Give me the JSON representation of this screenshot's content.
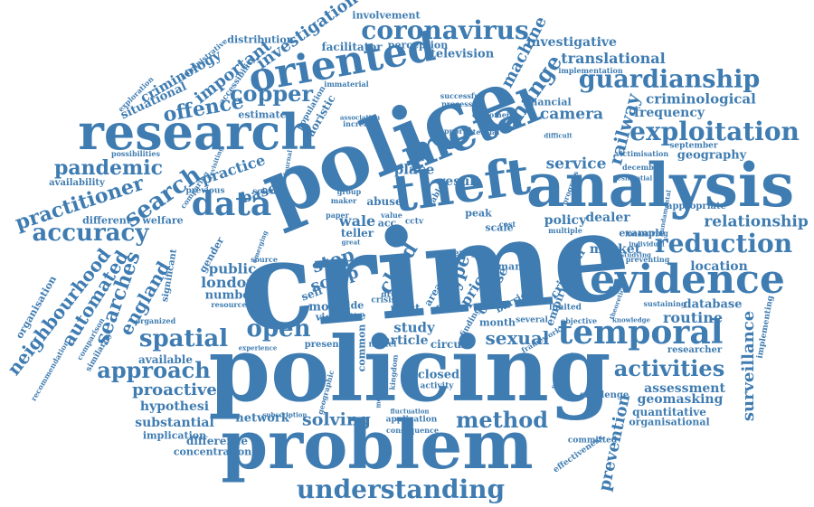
{
  "colors": {
    "primary": "#3f7cb1",
    "background": "#ffffff"
  },
  "words": [
    {
      "text": "crime"
    },
    {
      "text": "policing"
    },
    {
      "text": "problem"
    },
    {
      "text": "police"
    },
    {
      "text": "analysis"
    },
    {
      "text": "research"
    },
    {
      "text": "theft"
    },
    {
      "text": "metal"
    },
    {
      "text": "oriented"
    },
    {
      "text": "evidence"
    },
    {
      "text": "temporal"
    },
    {
      "text": "understanding"
    },
    {
      "text": "coronavirus"
    },
    {
      "text": "guardianship"
    },
    {
      "text": "exploitation"
    },
    {
      "text": "reduction"
    },
    {
      "text": "accuracy"
    },
    {
      "text": "practitioner"
    },
    {
      "text": "pandemic"
    },
    {
      "text": "data"
    },
    {
      "text": "copper"
    },
    {
      "text": "offence"
    },
    {
      "text": "spatial"
    },
    {
      "text": "approach"
    },
    {
      "text": "activities"
    },
    {
      "text": "method"
    },
    {
      "text": "solving"
    },
    {
      "text": "open"
    },
    {
      "text": "sexual"
    },
    {
      "text": "surveillance"
    },
    {
      "text": "relationship"
    },
    {
      "text": "prevention"
    },
    {
      "text": "neighbourhood"
    },
    {
      "text": "automated"
    },
    {
      "text": "searches"
    },
    {
      "text": "england"
    },
    {
      "text": "search"
    },
    {
      "text": "change"
    },
    {
      "text": "railway"
    },
    {
      "text": "machine"
    },
    {
      "text": "criminological"
    },
    {
      "text": "translational"
    },
    {
      "text": "investigative"
    },
    {
      "text": "frequency"
    },
    {
      "text": "camera"
    },
    {
      "text": "financial"
    },
    {
      "text": "service"
    },
    {
      "text": "location"
    },
    {
      "text": "routine"
    },
    {
      "text": "assessment"
    },
    {
      "text": "geomasking"
    },
    {
      "text": "quantitative"
    },
    {
      "text": "organisational"
    },
    {
      "text": "proactive"
    },
    {
      "text": "hypothesi"
    },
    {
      "text": "substantial"
    },
    {
      "text": "implication"
    },
    {
      "text": "network"
    },
    {
      "text": "difference"
    },
    {
      "text": "concentration"
    },
    {
      "text": "closed"
    },
    {
      "text": "activity"
    },
    {
      "text": "application"
    },
    {
      "text": "consequence"
    },
    {
      "text": "london"
    },
    {
      "text": "public"
    },
    {
      "text": "number"
    },
    {
      "text": "resource"
    },
    {
      "text": "stop"
    },
    {
      "text": "scrap"
    },
    {
      "text": "child"
    },
    {
      "text": "type"
    },
    {
      "text": "price"
    },
    {
      "text": "offense"
    },
    {
      "text": "study"
    },
    {
      "text": "article"
    },
    {
      "text": "circuit"
    },
    {
      "text": "month"
    },
    {
      "text": "several"
    },
    {
      "text": "estimate"
    },
    {
      "text": "important"
    },
    {
      "text": "criminology"
    },
    {
      "text": "situational"
    },
    {
      "text": "investigation"
    },
    {
      "text": "distribution"
    },
    {
      "text": "involvement"
    },
    {
      "text": "facilitator"
    },
    {
      "text": "perception"
    },
    {
      "text": "television"
    },
    {
      "text": "implementation"
    },
    {
      "text": "practice"
    },
    {
      "text": "based"
    },
    {
      "text": "place"
    },
    {
      "text": "result"
    },
    {
      "text": "wale"
    },
    {
      "text": "acc"
    },
    {
      "text": "policy"
    },
    {
      "text": "dealer"
    },
    {
      "text": "market"
    },
    {
      "text": "example"
    },
    {
      "text": "appropriate"
    },
    {
      "text": "database"
    },
    {
      "text": "sustaining"
    },
    {
      "text": "researcher"
    },
    {
      "text": "challenge"
    },
    {
      "text": "committed"
    },
    {
      "text": "effectiveness"
    },
    {
      "text": "available"
    },
    {
      "text": "different"
    },
    {
      "text": "availability"
    },
    {
      "text": "possibilities"
    },
    {
      "text": "welfare"
    },
    {
      "text": "significant"
    },
    {
      "text": "organisation"
    },
    {
      "text": "organized"
    },
    {
      "text": "comparing"
    },
    {
      "text": "accessibility"
    },
    {
      "text": "population"
    },
    {
      "text": "aoristic"
    },
    {
      "text": "science"
    },
    {
      "text": "previous"
    },
    {
      "text": "september"
    },
    {
      "text": "geography"
    },
    {
      "text": "december"
    },
    {
      "text": "customer"
    },
    {
      "text": "support"
    },
    {
      "text": "successful"
    },
    {
      "text": "processes"
    },
    {
      "text": "increase"
    },
    {
      "text": "immaterial"
    },
    {
      "text": "more"
    },
    {
      "text": "time"
    },
    {
      "text": "self"
    },
    {
      "text": "teller"
    },
    {
      "text": "guide"
    },
    {
      "text": "victim"
    },
    {
      "text": "present"
    },
    {
      "text": "common"
    },
    {
      "text": "model"
    },
    {
      "text": "most"
    },
    {
      "text": "cities"
    },
    {
      "text": "area"
    },
    {
      "text": "severity"
    },
    {
      "text": "crisis"
    },
    {
      "text": "peak"
    },
    {
      "text": "scale"
    },
    {
      "text": "cctv"
    },
    {
      "text": "barrier"
    },
    {
      "text": "empirical"
    },
    {
      "text": "criminal"
    },
    {
      "text": "many"
    },
    {
      "text": "finding"
    },
    {
      "text": "preventing"
    },
    {
      "text": "measuring"
    },
    {
      "text": "studying"
    },
    {
      "text": "multiple"
    },
    {
      "text": "limited"
    },
    {
      "text": "objective"
    },
    {
      "text": "knowledge"
    },
    {
      "text": "implementing"
    },
    {
      "text": "recommendation"
    },
    {
      "text": "similarity"
    },
    {
      "text": "comparison"
    },
    {
      "text": "gender"
    },
    {
      "text": "source"
    },
    {
      "text": "emerging"
    },
    {
      "text": "call"
    },
    {
      "text": "value"
    },
    {
      "text": "abuse"
    },
    {
      "text": "cable"
    },
    {
      "text": "group"
    },
    {
      "text": "maker"
    },
    {
      "text": "useful"
    },
    {
      "text": "paper"
    },
    {
      "text": "great"
    },
    {
      "text": "fluctuation"
    },
    {
      "text": "framework"
    },
    {
      "text": "kingdom"
    },
    {
      "text": "secondary"
    },
    {
      "text": "experience"
    },
    {
      "text": "subscription"
    },
    {
      "text": "geographic"
    },
    {
      "text": "metropolitan"
    },
    {
      "text": "journal"
    },
    {
      "text": "revisiting"
    },
    {
      "text": "exploration"
    },
    {
      "text": "administrative"
    },
    {
      "text": "potential"
    },
    {
      "text": "association"
    },
    {
      "text": "difficult"
    },
    {
      "text": "victimisation"
    },
    {
      "text": "residential"
    },
    {
      "text": "progress"
    },
    {
      "text": "fundamental"
    },
    {
      "text": "theoretical"
    },
    {
      "text": "individual"
    },
    {
      "text": "cost"
    },
    {
      "text": "drop"
    }
  ]
}
